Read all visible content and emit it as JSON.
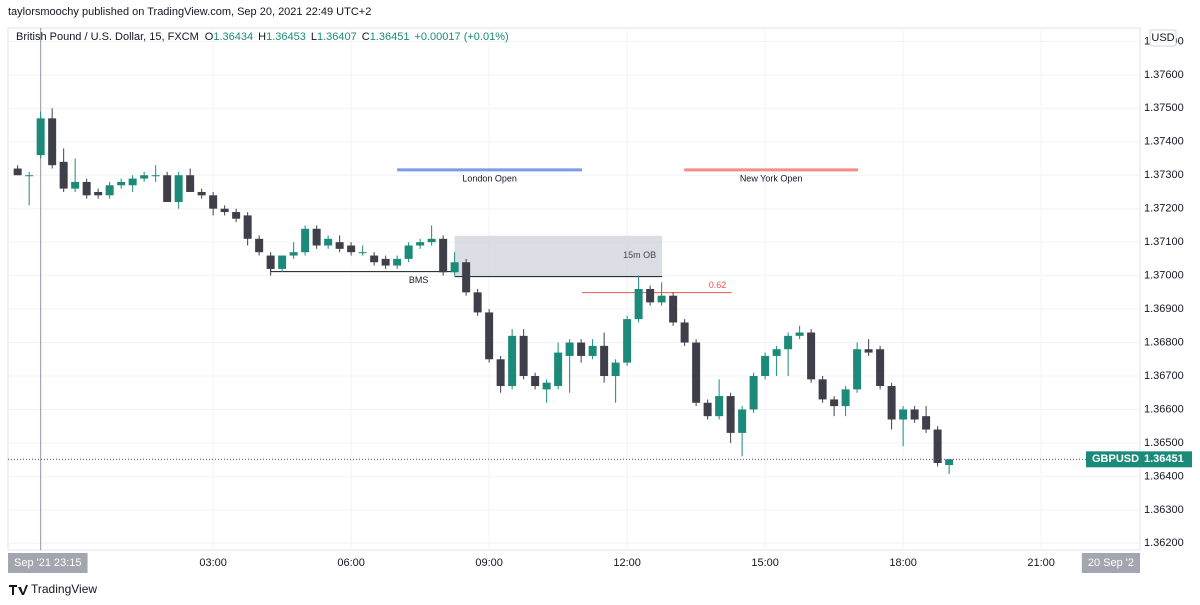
{
  "header": "taylorsmoochy published on TradingView.com, Sep 20, 2021 22:49 UTC+2",
  "chart_data": {
    "type": "candlestick",
    "legend": {
      "symbol": "British Pound / U.S. Dollar, 15, FXCM",
      "labels": [
        "O",
        "H",
        "L",
        "C"
      ],
      "change": "+0.00017 (+0.01%)"
    },
    "ticker": "GBPUSD",
    "currency": "USD",
    "up_color": "#1b8a78",
    "down_color": "#3f3f4a",
    "grid": true,
    "xlim": [
      -1.46,
      23.15
    ],
    "ylim": [
      1.3618,
      1.3774
    ],
    "xticks": [
      {
        "value": 3,
        "label": "03:00"
      },
      {
        "value": 6,
        "label": "06:00"
      },
      {
        "value": 9,
        "label": "09:00"
      },
      {
        "value": 12,
        "label": "12:00"
      },
      {
        "value": 15,
        "label": "15:00"
      },
      {
        "value": 18,
        "label": "18:00"
      },
      {
        "value": 21,
        "label": "21:00"
      }
    ],
    "yticks": [
      {
        "value": 1.362,
        "label": "1.36200"
      },
      {
        "value": 1.363,
        "label": "1.36300"
      },
      {
        "value": 1.364,
        "label": "1.36400"
      },
      {
        "value": 1.365,
        "label": "1.36500"
      },
      {
        "value": 1.366,
        "label": "1.36600"
      },
      {
        "value": 1.367,
        "label": "1.36700"
      },
      {
        "value": 1.368,
        "label": "1.36800"
      },
      {
        "value": 1.369,
        "label": "1.36900"
      },
      {
        "value": 1.37,
        "label": "1.37000"
      },
      {
        "value": 1.371,
        "label": "1.37100"
      },
      {
        "value": 1.372,
        "label": "1.37200"
      },
      {
        "value": 1.373,
        "label": "1.37300"
      },
      {
        "value": 1.374,
        "label": "1.37400"
      },
      {
        "value": 1.375,
        "label": "1.37500"
      },
      {
        "value": 1.376,
        "label": "1.37600"
      },
      {
        "value": 1.377,
        "label": "1.37700"
      }
    ],
    "cursor_labels": [
      {
        "value": -0.75,
        "label": "Sep '21  23:15"
      },
      {
        "value": 22.54,
        "label": "20 Sep '2"
      }
    ],
    "x": [
      -1.25,
      -1,
      -0.75,
      -0.5,
      -0.25,
      0,
      0.25,
      0.5,
      0.75,
      1,
      1.25,
      1.5,
      1.75,
      2,
      2.25,
      2.5,
      2.75,
      3,
      3.25,
      3.5,
      3.75,
      4,
      4.25,
      4.5,
      4.75,
      5,
      5.25,
      5.5,
      5.75,
      6,
      6.25,
      6.5,
      6.75,
      7,
      7.25,
      7.5,
      7.75,
      8,
      8.25,
      8.5,
      8.75,
      9,
      9.25,
      9.5,
      9.75,
      10,
      10.25,
      10.5,
      10.75,
      11,
      11.25,
      11.5,
      11.75,
      12,
      12.25,
      12.5,
      12.75,
      13,
      13.25,
      13.5,
      13.75,
      14,
      14.25,
      14.5,
      14.75,
      15,
      15.25,
      15.5,
      15.75,
      16,
      16.25,
      16.5,
      16.75,
      17,
      17.25,
      17.5,
      17.75,
      18,
      18.25,
      18.5,
      18.75,
      19
    ],
    "open": [
      1.3732,
      1.373,
      1.3736,
      1.3747,
      1.3734,
      1.3726,
      1.3728,
      1.3725,
      1.3724,
      1.3727,
      1.3727,
      1.3729,
      1.373,
      1.373,
      1.3722,
      1.373,
      1.3725,
      1.3724,
      1.372,
      1.3719,
      1.3718,
      1.3711,
      1.3706,
      1.3702,
      1.3706,
      1.3707,
      1.3714,
      1.3709,
      1.371,
      1.3709,
      1.3707,
      1.3706,
      1.3705,
      1.3703,
      1.3705,
      1.3709,
      1.371,
      1.3711,
      1.3701,
      1.3704,
      1.3695,
      1.3689,
      1.3675,
      1.3667,
      1.3682,
      1.367,
      1.3666,
      1.3667,
      1.3676,
      1.368,
      1.3676,
      1.3679,
      1.367,
      1.3674,
      1.3687,
      1.3696,
      1.3692,
      1.3694,
      1.3686,
      1.368,
      1.3662,
      1.3658,
      1.3664,
      1.3653,
      1.366,
      1.367,
      1.3676,
      1.3678,
      1.3682,
      1.3683,
      1.3669,
      1.3663,
      1.3661,
      1.3666,
      1.3678,
      1.3678,
      1.3667,
      1.3657,
      1.366,
      1.3658,
      1.3654,
      1.36434
    ],
    "high": [
      1.3733,
      1.3731,
      1.3749,
      1.375,
      1.3738,
      1.3735,
      1.3729,
      1.3726,
      1.3728,
      1.3729,
      1.373,
      1.3731,
      1.3733,
      1.3731,
      1.3731,
      1.3732,
      1.3726,
      1.3725,
      1.3721,
      1.372,
      1.3719,
      1.3712,
      1.3707,
      1.3706,
      1.371,
      1.3715,
      1.3715,
      1.3712,
      1.3712,
      1.371,
      1.3709,
      1.3707,
      1.3706,
      1.3706,
      1.371,
      1.3711,
      1.3715,
      1.3712,
      1.3707,
      1.3705,
      1.3696,
      1.369,
      1.3676,
      1.3684,
      1.3684,
      1.3671,
      1.3669,
      1.368,
      1.3681,
      1.3681,
      1.3681,
      1.3683,
      1.3675,
      1.3688,
      1.37,
      1.3697,
      1.3698,
      1.3695,
      1.3687,
      1.3681,
      1.3663,
      1.3669,
      1.3665,
      1.3661,
      1.3671,
      1.3677,
      1.3679,
      1.3683,
      1.3685,
      1.3684,
      1.367,
      1.3664,
      1.3667,
      1.368,
      1.3681,
      1.3679,
      1.3668,
      1.3661,
      1.3661,
      1.3661,
      1.3655,
      1.36453
    ],
    "low": [
      1.373,
      1.3721,
      1.3735,
      1.3732,
      1.3725,
      1.3725,
      1.3723,
      1.3723,
      1.3723,
      1.3726,
      1.3725,
      1.3728,
      1.3728,
      1.3722,
      1.372,
      1.3725,
      1.3723,
      1.3718,
      1.3718,
      1.3716,
      1.3709,
      1.3706,
      1.37,
      1.3701,
      1.3705,
      1.3706,
      1.3708,
      1.3708,
      1.3707,
      1.3706,
      1.3706,
      1.3703,
      1.3702,
      1.3702,
      1.3704,
      1.3708,
      1.3709,
      1.37,
      1.37,
      1.3694,
      1.3688,
      1.3674,
      1.3665,
      1.3666,
      1.3669,
      1.3666,
      1.3662,
      1.3666,
      1.3665,
      1.3674,
      1.3675,
      1.3668,
      1.3662,
      1.3673,
      1.3686,
      1.3691,
      1.3691,
      1.3685,
      1.3679,
      1.3661,
      1.3657,
      1.3657,
      1.365,
      1.3646,
      1.3659,
      1.3669,
      1.367,
      1.367,
      1.3681,
      1.3668,
      1.3662,
      1.3658,
      1.3658,
      1.3665,
      1.3676,
      1.3666,
      1.3654,
      1.3649,
      1.3656,
      1.3653,
      1.3643,
      1.36407
    ],
    "close": [
      1.373,
      1.373,
      1.3747,
      1.3733,
      1.3726,
      1.3728,
      1.3724,
      1.3724,
      1.3727,
      1.3728,
      1.3729,
      1.373,
      1.373,
      1.3722,
      1.373,
      1.3725,
      1.3724,
      1.372,
      1.3719,
      1.3717,
      1.3711,
      1.3707,
      1.3702,
      1.3706,
      1.3707,
      1.3714,
      1.3709,
      1.3711,
      1.3708,
      1.3707,
      1.3707,
      1.3704,
      1.3703,
      1.3705,
      1.3709,
      1.371,
      1.3711,
      1.3701,
      1.3704,
      1.3695,
      1.3689,
      1.3675,
      1.3667,
      1.3682,
      1.367,
      1.3667,
      1.3668,
      1.3677,
      1.368,
      1.3676,
      1.3679,
      1.367,
      1.3674,
      1.3687,
      1.3696,
      1.3692,
      1.3694,
      1.3686,
      1.368,
      1.3662,
      1.3658,
      1.3664,
      1.3653,
      1.366,
      1.367,
      1.3676,
      1.3678,
      1.3682,
      1.3683,
      1.3669,
      1.3663,
      1.3661,
      1.3666,
      1.3678,
      1.3677,
      1.3667,
      1.3657,
      1.366,
      1.3657,
      1.3654,
      1.3644,
      1.36451
    ],
    "annotations": [
      {
        "kind": "level",
        "text": "London Open",
        "x": [
          7,
          11.02
        ],
        "y": 1.37316,
        "color": "#7b9be3"
      },
      {
        "kind": "level",
        "text": "New York Open",
        "x": [
          13.24,
          17.02
        ],
        "y": 1.37316,
        "color": "#ef8f87"
      },
      {
        "kind": "box",
        "text": "15m OB",
        "x": [
          8.25,
          12.76
        ],
        "y": [
          1.36997,
          1.37119
        ],
        "color": "#d1d4dc"
      },
      {
        "kind": "bms",
        "text": "BMS",
        "x": [
          4.25,
          8.25
        ],
        "y": 1.37012,
        "color": "#131722"
      },
      {
        "kind": "fib",
        "text": "0.62",
        "x": [
          11.02,
          14.27
        ],
        "y": 1.36949,
        "color": "#f05350"
      }
    ]
  },
  "footer": "TradingView"
}
